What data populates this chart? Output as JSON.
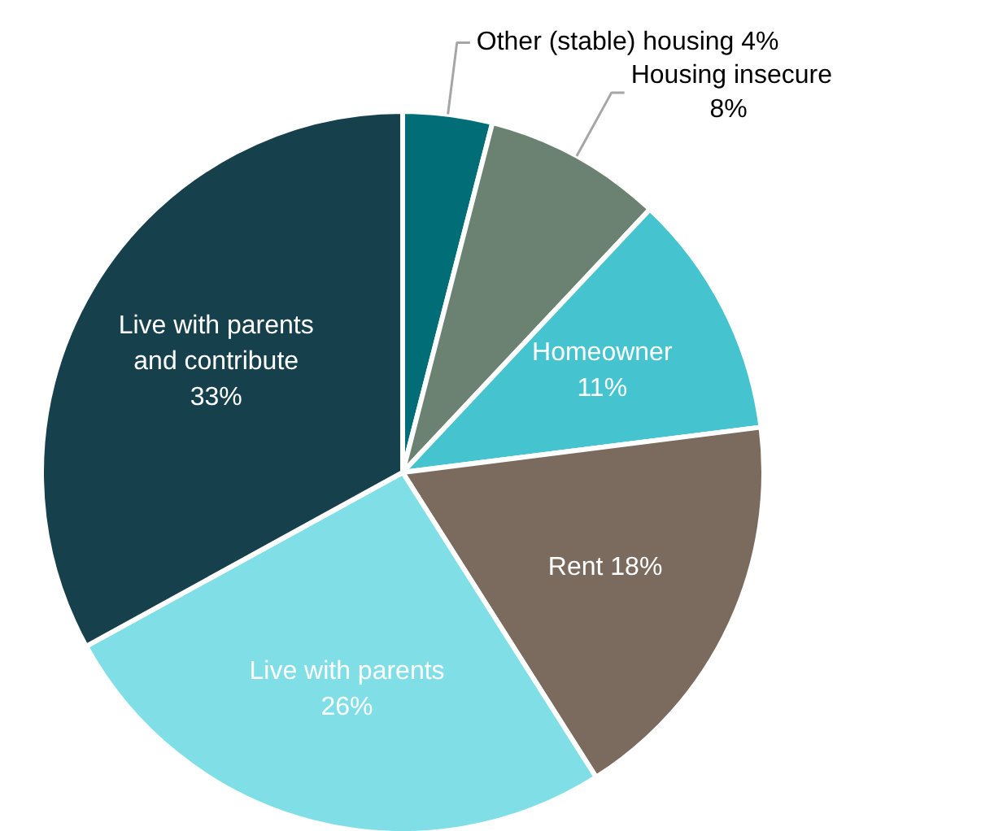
{
  "chart_data": {
    "type": "pie",
    "categories": [
      "Other (stable) housing",
      "Housing insecure",
      "Homeowner",
      "Rent",
      "Live with parents",
      "Live with parents and contribute"
    ],
    "values": [
      4,
      8,
      11,
      18,
      26,
      33
    ],
    "value_labels": [
      "4%",
      "8%",
      "11%",
      "18%",
      "26%",
      "33%"
    ],
    "colors": [
      "#006d77",
      "#6b8272",
      "#45c3cf",
      "#7a6b5e",
      "#80dfe6",
      "#17404d"
    ]
  }
}
